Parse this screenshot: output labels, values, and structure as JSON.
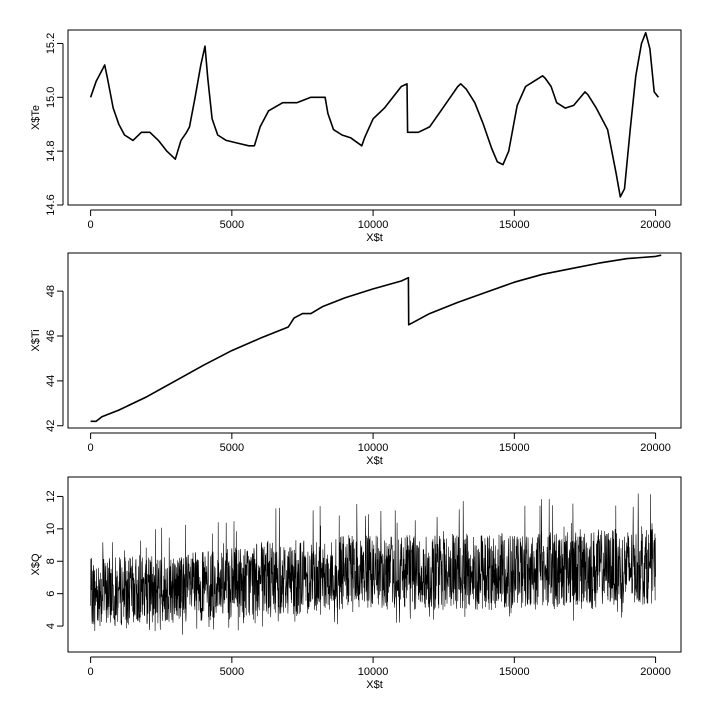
{
  "chart_data": [
    {
      "type": "line",
      "xlabel": "X$t",
      "ylabel": "X$Te",
      "xlim": [
        -800,
        20900
      ],
      "ylim": [
        14.6,
        15.25
      ],
      "xticks": [
        0,
        5000,
        10000,
        15000,
        20000
      ],
      "yticks": [
        14.6,
        14.8,
        15.0,
        15.2
      ],
      "ytick_labels": [
        "14.6",
        "14.8",
        "15.0",
        "15.2"
      ],
      "grid": false,
      "series": [
        {
          "x": [
            0,
            200,
            350,
            500,
            600,
            800,
            1000,
            1200,
            1500,
            1800,
            2100,
            2400,
            2700,
            3000,
            3200,
            3400,
            3500,
            3700,
            3900,
            4050,
            4150,
            4300,
            4500,
            4800,
            5200,
            5600,
            5800,
            6000,
            6300,
            6800,
            7300,
            7800,
            8300,
            8400,
            8600,
            8900,
            9200,
            9600,
            9700,
            10000,
            10400,
            11000,
            11200,
            11220,
            11600,
            12000,
            12400,
            12800,
            13000,
            13100,
            13300,
            13600,
            13900,
            14200,
            14400,
            14600,
            14800,
            15100,
            15400,
            15700,
            16000,
            16100,
            16300,
            16500,
            16800,
            17100,
            17500,
            17600,
            17900,
            18300,
            18600,
            18750,
            18900,
            19100,
            19300,
            19500,
            19650,
            19800,
            19950,
            20100
          ],
          "y": [
            15.0,
            15.06,
            15.09,
            15.12,
            15.07,
            14.96,
            14.9,
            14.86,
            14.84,
            14.87,
            14.87,
            14.84,
            14.8,
            14.77,
            14.84,
            14.87,
            14.89,
            15.0,
            15.12,
            15.19,
            15.07,
            14.92,
            14.86,
            14.84,
            14.83,
            14.82,
            14.82,
            14.89,
            14.95,
            14.98,
            14.98,
            15.0,
            15.0,
            14.94,
            14.88,
            14.86,
            14.85,
            14.82,
            14.85,
            14.92,
            14.96,
            15.04,
            15.05,
            14.87,
            14.87,
            14.89,
            14.95,
            15.01,
            15.04,
            15.05,
            15.03,
            14.98,
            14.9,
            14.81,
            14.76,
            14.75,
            14.8,
            14.97,
            15.04,
            15.06,
            15.08,
            15.07,
            15.04,
            14.98,
            14.96,
            14.97,
            15.02,
            15.01,
            14.96,
            14.88,
            14.72,
            14.63,
            14.66,
            14.88,
            15.08,
            15.2,
            15.24,
            15.18,
            15.02,
            15.0
          ]
        }
      ]
    },
    {
      "type": "line",
      "xlabel": "X$t",
      "ylabel": "X$Ti",
      "xlim": [
        -800,
        20900
      ],
      "ylim": [
        41.9,
        49.7
      ],
      "xticks": [
        0,
        5000,
        10000,
        15000,
        20000
      ],
      "yticks": [
        42,
        44,
        46,
        48
      ],
      "ytick_labels": [
        "42",
        "44",
        "46",
        "48"
      ],
      "grid": false,
      "series": [
        {
          "x": [
            0,
            200,
            400,
            1000,
            2000,
            3000,
            4000,
            5000,
            6000,
            7000,
            7200,
            7500,
            7800,
            8200,
            9000,
            10000,
            11000,
            11250,
            11260,
            12000,
            13000,
            14000,
            15000,
            16000,
            17000,
            18000,
            19000,
            20000,
            20200
          ],
          "y": [
            42.2,
            42.2,
            42.4,
            42.7,
            43.3,
            44.0,
            44.7,
            45.35,
            45.9,
            46.4,
            46.8,
            47.0,
            47.0,
            47.3,
            47.7,
            48.1,
            48.45,
            48.6,
            46.5,
            47.0,
            47.5,
            47.95,
            48.4,
            48.75,
            49.0,
            49.25,
            49.45,
            49.55,
            49.6
          ]
        }
      ]
    },
    {
      "type": "line",
      "xlabel": "X$t",
      "ylabel": "X$Q",
      "xlim": [
        -800,
        20900
      ],
      "ylim": [
        2.4,
        13.2
      ],
      "xticks": [
        0,
        5000,
        10000,
        15000,
        20000
      ],
      "yticks": [
        4,
        6,
        8,
        10,
        12
      ],
      "ytick_labels": [
        "4",
        "6",
        "8",
        "10",
        "12"
      ],
      "grid": false,
      "series": [
        {
          "x": [
            0,
            1000,
            2000,
            3000,
            4000,
            5000,
            6000,
            7000,
            8000,
            9000,
            10000,
            11000,
            12000,
            13000,
            14000,
            15000,
            16000,
            17000,
            18000,
            19000,
            20000
          ],
          "y": [
            6.0,
            6.1,
            6.2,
            6.3,
            6.4,
            6.5,
            6.7,
            6.8,
            6.9,
            7.0,
            7.0,
            7.0,
            7.0,
            7.0,
            7.0,
            7.1,
            7.2,
            7.3,
            7.4,
            7.5,
            7.5
          ],
          "upper": [
            8.2,
            8.3,
            8.3,
            8.5,
            8.6,
            8.8,
            9.2,
            9.3,
            9.5,
            9.6,
            9.6,
            9.6,
            9.7,
            9.7,
            9.7,
            9.8,
            9.9,
            10.0,
            10.0,
            10.0,
            10.0
          ],
          "lower": [
            4.0,
            4.0,
            4.1,
            4.2,
            4.3,
            4.4,
            4.6,
            4.7,
            4.8,
            4.9,
            5.0,
            5.0,
            5.0,
            5.0,
            5.0,
            5.1,
            5.1,
            5.2,
            5.3,
            5.3,
            5.4
          ]
        }
      ]
    }
  ]
}
